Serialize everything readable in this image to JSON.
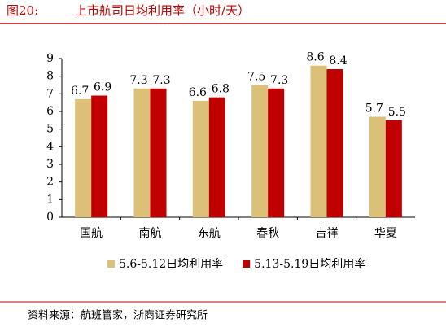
{
  "chart_data": {
    "type": "bar",
    "title_label": "图20:",
    "title": "上市航司日均利用率（小时/天）",
    "categories": [
      "国航",
      "南航",
      "东航",
      "春秋",
      "吉祥",
      "华夏"
    ],
    "series": [
      {
        "name": "5.6-5.12日均利用率",
        "color": "#dcc078",
        "values": [
          6.7,
          7.3,
          6.6,
          7.5,
          8.6,
          5.7
        ]
      },
      {
        "name": "5.13-5.19日均利用率",
        "color": "#c00000",
        "values": [
          6.9,
          7.3,
          6.8,
          7.3,
          8.4,
          5.5
        ]
      }
    ],
    "ylim": [
      0,
      9
    ],
    "yticks": [
      0,
      1,
      2,
      3,
      4,
      5,
      6,
      7,
      8,
      9
    ],
    "grid": false,
    "legend": "bottom",
    "source": "资料来源：航班管家，浙商证券研究所"
  }
}
